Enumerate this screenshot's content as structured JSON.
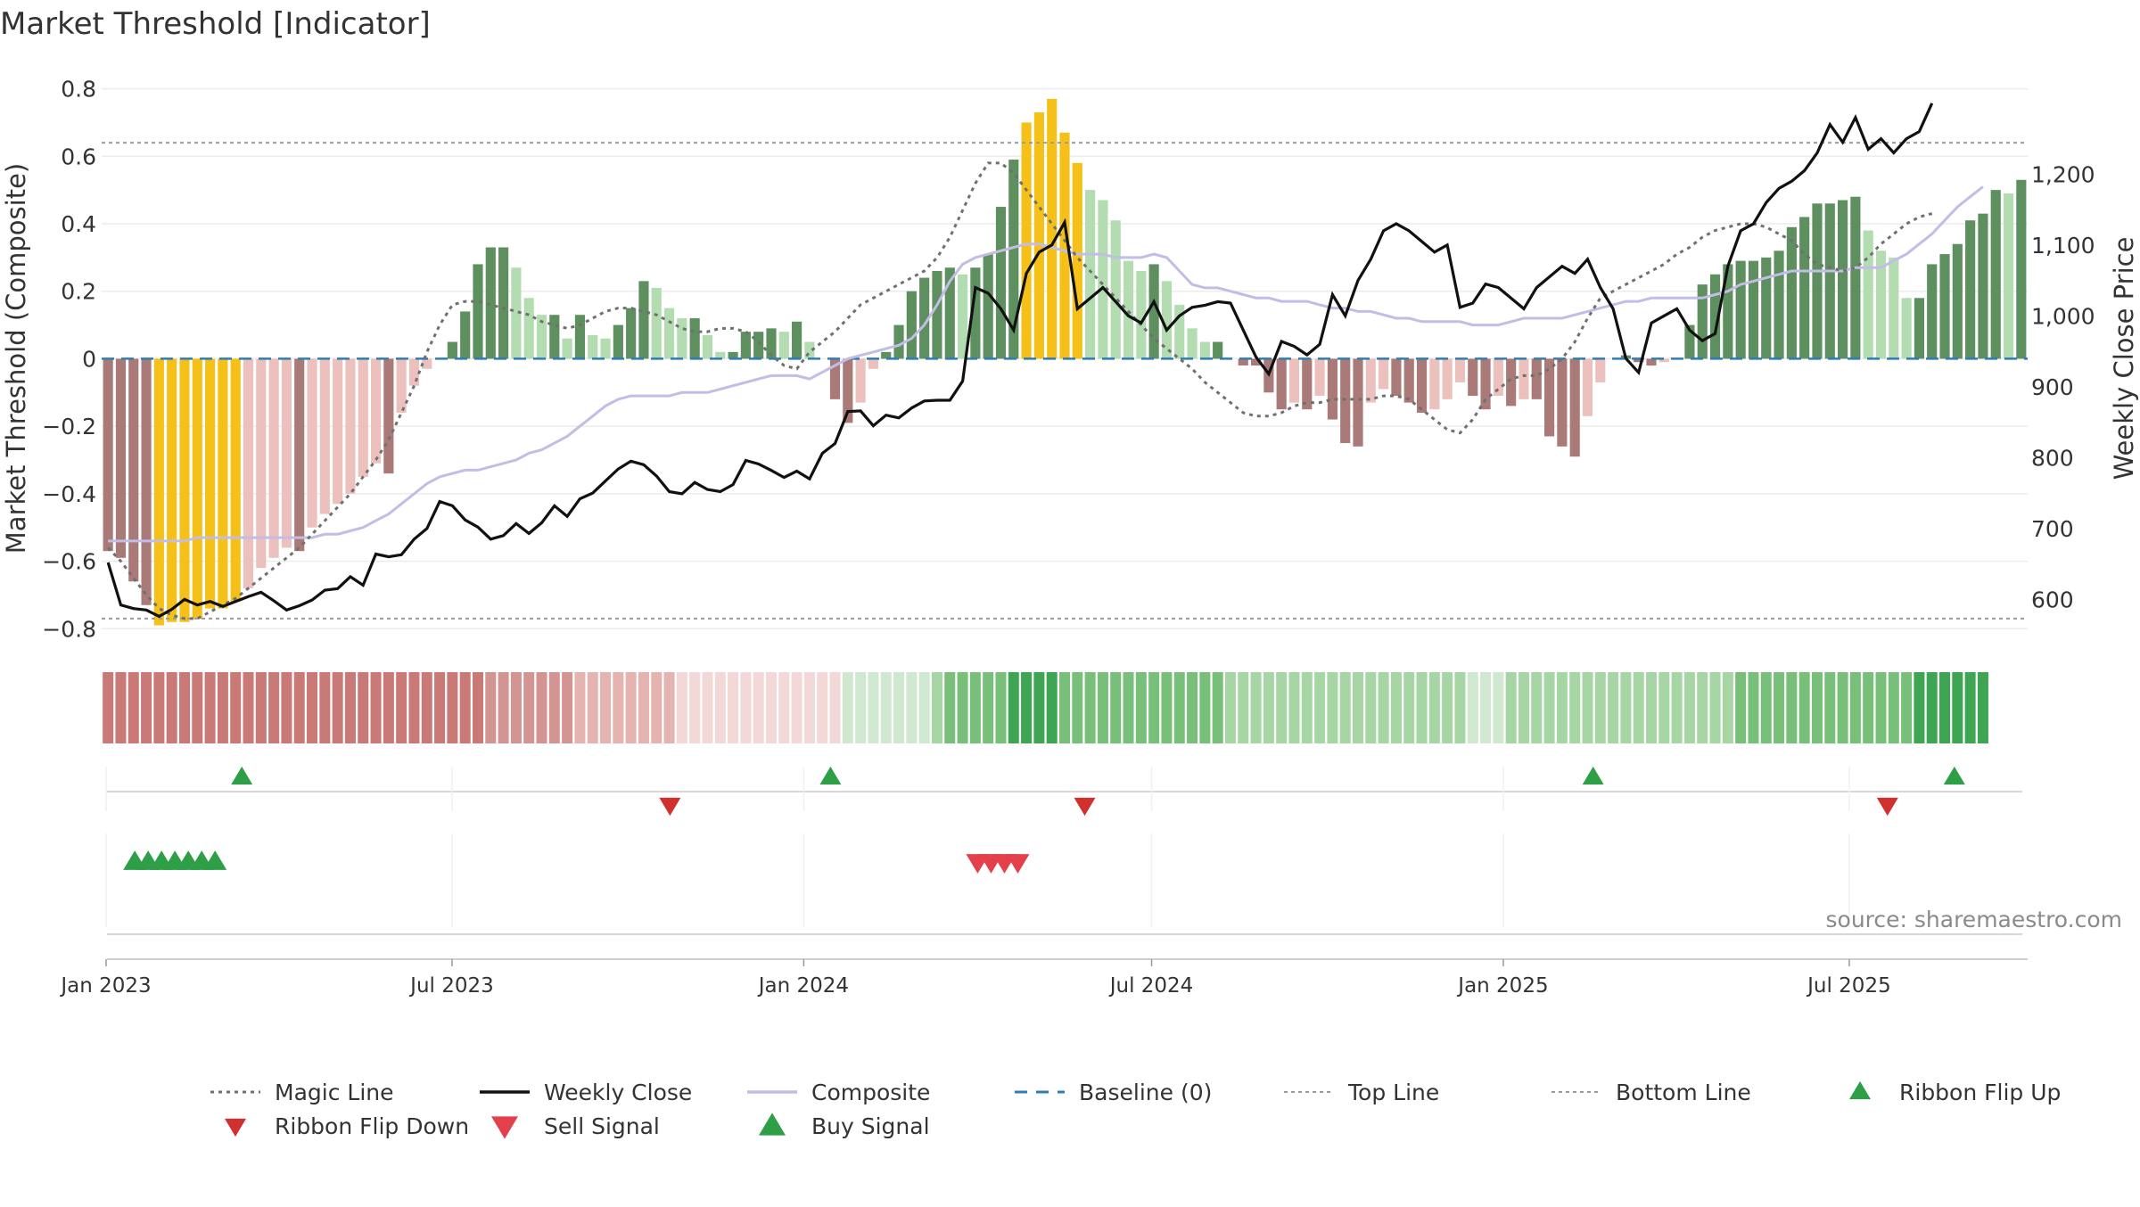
{
  "chart_data": {
    "type": "bar",
    "title": "Market Threshold [Indicator]",
    "source": "source: sharemaestro.com",
    "ylabel_left": "Market Threshold (Composite)",
    "ylabel_right": "Weekly Close Price",
    "xaxis": {
      "start": "2023-01-02",
      "end": "2025-09-29",
      "ticks": [
        {
          "label": "Jan 2023",
          "date": "2023-01-01"
        },
        {
          "label": "Jul 2023",
          "date": "2023-07-01"
        },
        {
          "label": "Jan 2024",
          "date": "2024-01-01"
        },
        {
          "label": "Jul 2024",
          "date": "2024-07-01"
        },
        {
          "label": "Jan 2025",
          "date": "2025-01-01"
        },
        {
          "label": "Jul 2025",
          "date": "2025-07-01"
        }
      ]
    },
    "yaxis_left": {
      "range": [
        -0.86,
        0.82
      ],
      "ticks": [
        {
          "v": 0.8,
          "label": "0.8"
        },
        {
          "v": 0.6,
          "label": "0.6"
        },
        {
          "v": 0.4,
          "label": "0.4"
        },
        {
          "v": 0.2,
          "label": "0.2"
        },
        {
          "v": 0,
          "label": "0"
        },
        {
          "v": -0.2,
          "label": "−0.2"
        },
        {
          "v": -0.4,
          "label": "−0.4"
        },
        {
          "v": -0.6,
          "label": "−0.6"
        },
        {
          "v": -0.8,
          "label": "−0.8"
        }
      ]
    },
    "yaxis_right": {
      "range": [
        530,
        1330
      ],
      "ticks": [
        {
          "v": 1200,
          "label": "1,200"
        },
        {
          "v": 1100,
          "label": "1,100"
        },
        {
          "v": 1000,
          "label": "1,000"
        },
        {
          "v": 900,
          "label": "900"
        },
        {
          "v": 800,
          "label": "800"
        },
        {
          "v": 700,
          "label": "700"
        },
        {
          "v": 600,
          "label": "600"
        }
      ]
    },
    "top_line": 0.64,
    "bottom_line": -0.77,
    "composite_bars": [
      -0.57,
      -0.59,
      -0.66,
      -0.73,
      -0.79,
      -0.78,
      -0.78,
      -0.77,
      -0.74,
      -0.74,
      -0.72,
      -0.68,
      -0.62,
      -0.59,
      -0.56,
      -0.57,
      -0.5,
      -0.46,
      -0.43,
      -0.4,
      -0.35,
      -0.31,
      -0.34,
      -0.16,
      -0.08,
      -0.03,
      0.0,
      0.05,
      0.14,
      0.28,
      0.33,
      0.33,
      0.27,
      0.18,
      0.13,
      0.13,
      0.06,
      0.13,
      0.07,
      0.06,
      0.1,
      0.15,
      0.23,
      0.21,
      0.15,
      0.12,
      0.12,
      0.07,
      0.02,
      0.02,
      0.08,
      0.08,
      0.09,
      0.08,
      0.11,
      0.05,
      0.0,
      -0.12,
      -0.19,
      -0.13,
      -0.03,
      0.02,
      0.1,
      0.2,
      0.24,
      0.26,
      0.27,
      0.25,
      0.27,
      0.31,
      0.45,
      0.59,
      0.7,
      0.73,
      0.77,
      0.67,
      0.58,
      0.5,
      0.47,
      0.41,
      0.29,
      0.26,
      0.28,
      0.23,
      0.16,
      0.09,
      0.05,
      0.05,
      0.0,
      -0.02,
      -0.02,
      -0.1,
      -0.15,
      -0.13,
      -0.15,
      -0.11,
      -0.18,
      -0.25,
      -0.26,
      -0.13,
      -0.09,
      -0.11,
      -0.13,
      -0.16,
      -0.15,
      -0.12,
      -0.07,
      -0.11,
      -0.15,
      -0.11,
      -0.14,
      -0.12,
      -0.12,
      -0.23,
      -0.26,
      -0.29,
      -0.17,
      -0.07,
      0.0,
      0.01,
      -0.01,
      -0.02,
      -0.01,
      0.0,
      0.1,
      0.22,
      0.25,
      0.28,
      0.29,
      0.29,
      0.3,
      0.32,
      0.39,
      0.42,
      0.46,
      0.46,
      0.47,
      0.48,
      0.38,
      0.32,
      0.3,
      0.18,
      0.18,
      0.28,
      0.31,
      0.34,
      0.41,
      0.43,
      0.5,
      0.49,
      0.53
    ],
    "yellow_bar_indices": [
      4,
      5,
      6,
      7,
      8,
      9,
      10,
      72,
      73,
      74,
      75,
      76
    ],
    "weekly_close": [
      652,
      592,
      587,
      585,
      576,
      586,
      600,
      592,
      597,
      590,
      597,
      604,
      610,
      598,
      585,
      591,
      599,
      613,
      615,
      632,
      620,
      664,
      660,
      663,
      685,
      700,
      738,
      732,
      712,
      702,
      685,
      690,
      707,
      693,
      708,
      732,
      717,
      742,
      750,
      767,
      784,
      795,
      790,
      774,
      752,
      749,
      765,
      755,
      752,
      762,
      796,
      791,
      782,
      772,
      781,
      770,
      806,
      820,
      865,
      866,
      845,
      860,
      856,
      870,
      880,
      881,
      881,
      908,
      1040,
      1032,
      1010,
      980,
      1060,
      1090,
      1100,
      1132,
      1010,
      1025,
      1040,
      1020,
      1000,
      990,
      1020,
      980,
      1000,
      1012,
      1015,
      1020,
      1018,
      980,
      942,
      918,
      964,
      957,
      945,
      960,
      1030,
      1000,
      1050,
      1080,
      1120,
      1130,
      1120,
      1105,
      1090,
      1100,
      1012,
      1018,
      1045,
      1040,
      1025,
      1010,
      1040,
      1055,
      1070,
      1060,
      1080,
      1040,
      1010,
      940,
      920,
      990,
      1000,
      1010,
      980,
      965,
      975,
      1070,
      1120,
      1130,
      1160,
      1180,
      1190,
      1205,
      1230,
      1270,
      1245,
      1280,
      1235,
      1250,
      1230,
      1250,
      1260,
      1300
    ],
    "magic_line": [
      -0.56,
      -0.6,
      -0.65,
      -0.7,
      -0.74,
      -0.76,
      -0.77,
      -0.77,
      -0.75,
      -0.73,
      -0.71,
      -0.68,
      -0.65,
      -0.62,
      -0.59,
      -0.56,
      -0.52,
      -0.48,
      -0.44,
      -0.4,
      -0.35,
      -0.3,
      -0.24,
      -0.16,
      -0.08,
      0.02,
      0.1,
      0.16,
      0.17,
      0.17,
      0.16,
      0.15,
      0.14,
      0.13,
      0.11,
      0.1,
      0.09,
      0.1,
      0.12,
      0.14,
      0.15,
      0.15,
      0.14,
      0.13,
      0.11,
      0.09,
      0.08,
      0.08,
      0.09,
      0.09,
      0.08,
      0.05,
      0.01,
      -0.02,
      -0.03,
      0.02,
      0.05,
      0.08,
      0.12,
      0.16,
      0.18,
      0.2,
      0.22,
      0.24,
      0.26,
      0.3,
      0.36,
      0.44,
      0.52,
      0.58,
      0.58,
      0.55,
      0.5,
      0.45,
      0.4,
      0.35,
      0.3,
      0.26,
      0.22,
      0.18,
      0.14,
      0.1,
      0.06,
      0.03,
      0.0,
      -0.03,
      -0.07,
      -0.1,
      -0.13,
      -0.16,
      -0.17,
      -0.17,
      -0.16,
      -0.14,
      -0.13,
      -0.13,
      -0.12,
      -0.12,
      -0.12,
      -0.12,
      -0.11,
      -0.11,
      -0.12,
      -0.15,
      -0.18,
      -0.21,
      -0.22,
      -0.18,
      -0.12,
      -0.09,
      -0.06,
      -0.05,
      -0.05,
      -0.03,
      0.0,
      0.05,
      0.12,
      0.18,
      0.2,
      0.22,
      0.24,
      0.26,
      0.28,
      0.31,
      0.33,
      0.36,
      0.38,
      0.39,
      0.4,
      0.4,
      0.39,
      0.37,
      0.35,
      0.31,
      0.28,
      0.27,
      0.26,
      0.27,
      0.3,
      0.34,
      0.37,
      0.4,
      0.42,
      0.43
    ],
    "composite_line": [
      -0.54,
      -0.54,
      -0.54,
      -0.54,
      -0.54,
      -0.54,
      -0.54,
      -0.53,
      -0.53,
      -0.53,
      -0.53,
      -0.53,
      -0.53,
      -0.53,
      -0.53,
      -0.53,
      -0.53,
      -0.52,
      -0.52,
      -0.51,
      -0.5,
      -0.48,
      -0.46,
      -0.43,
      -0.4,
      -0.37,
      -0.35,
      -0.34,
      -0.33,
      -0.33,
      -0.32,
      -0.31,
      -0.3,
      -0.28,
      -0.27,
      -0.25,
      -0.23,
      -0.2,
      -0.17,
      -0.14,
      -0.12,
      -0.11,
      -0.11,
      -0.11,
      -0.11,
      -0.1,
      -0.1,
      -0.1,
      -0.09,
      -0.08,
      -0.07,
      -0.06,
      -0.05,
      -0.05,
      -0.05,
      -0.06,
      -0.04,
      -0.02,
      0.0,
      0.01,
      0.02,
      0.03,
      0.04,
      0.06,
      0.1,
      0.16,
      0.23,
      0.28,
      0.3,
      0.31,
      0.32,
      0.33,
      0.34,
      0.34,
      0.33,
      0.32,
      0.31,
      0.31,
      0.31,
      0.3,
      0.3,
      0.3,
      0.31,
      0.3,
      0.26,
      0.22,
      0.21,
      0.21,
      0.2,
      0.19,
      0.18,
      0.18,
      0.17,
      0.17,
      0.17,
      0.16,
      0.15,
      0.15,
      0.14,
      0.14,
      0.13,
      0.12,
      0.12,
      0.11,
      0.11,
      0.11,
      0.11,
      0.1,
      0.1,
      0.1,
      0.11,
      0.12,
      0.12,
      0.12,
      0.12,
      0.13,
      0.14,
      0.15,
      0.16,
      0.17,
      0.17,
      0.18,
      0.18,
      0.18,
      0.18,
      0.18,
      0.19,
      0.2,
      0.22,
      0.23,
      0.24,
      0.25,
      0.26,
      0.26,
      0.26,
      0.26,
      0.26,
      0.27,
      0.27,
      0.27,
      0.29,
      0.31,
      0.34,
      0.37,
      0.41,
      0.45,
      0.48,
      0.51
    ],
    "bar_colors": {
      "strong_positive": "#5e8f5e",
      "positive": "#b3dcb0",
      "strong_negative": "#a97a77",
      "negative": "#ecc1bd",
      "extreme": "#f5c118"
    },
    "ribbon": {
      "colors_positive": [
        "#cfe8cf",
        "#a6d6a4",
        "#78c07a",
        "#3ea552"
      ],
      "colors_negative": [
        "#f2d8d6",
        "#e5b3b0",
        "#d39591",
        "#c97a76"
      ]
    },
    "ribbon_flip_up_dates": [
      "2023-03-13",
      "2024-01-15",
      "2025-02-17",
      "2025-08-25"
    ],
    "ribbon_flip_down_dates": [
      "2023-10-23",
      "2024-05-27",
      "2025-07-21"
    ],
    "buy_signal_dates": [
      "2023-01-16",
      "2023-01-23",
      "2023-01-30",
      "2023-02-06",
      "2023-02-13",
      "2023-02-20",
      "2023-02-27"
    ],
    "sell_signal_dates": [
      "2024-04-01",
      "2024-04-08",
      "2024-04-15",
      "2024-04-22"
    ],
    "colors": {
      "weekly_close": "#111111",
      "composite": "#c2bde6",
      "magic_line": "#707070",
      "baseline": "#2f7cb7",
      "ref_lines": "#9a9a9a",
      "flip_up": "#2e9e47",
      "flip_down": "#d1312e",
      "sell": "#e3404b",
      "buy": "#2e9e47"
    },
    "legend": [
      {
        "label": "Magic Line",
        "kind": "dotted",
        "color": "#707070"
      },
      {
        "label": "Weekly Close",
        "kind": "solid",
        "color": "#111111"
      },
      {
        "label": "Composite",
        "kind": "solid",
        "color": "#c2bde6"
      },
      {
        "label": "Baseline (0)",
        "kind": "dashed",
        "color": "#2f7cb7"
      },
      {
        "label": "Top Line",
        "kind": "dotted-light",
        "color": "#9a9a9a"
      },
      {
        "label": "Bottom Line",
        "kind": "dotted-light",
        "color": "#9a9a9a"
      },
      {
        "label": "Ribbon Flip Up",
        "kind": "tri-up",
        "color": "#2e9e47"
      },
      {
        "label": "Ribbon Flip Down",
        "kind": "tri-down",
        "color": "#d1312e"
      },
      {
        "label": "Sell Signal",
        "kind": "tri-down-big",
        "color": "#e3404b"
      },
      {
        "label": "Buy Signal",
        "kind": "tri-up-big",
        "color": "#2e9e47"
      }
    ]
  }
}
